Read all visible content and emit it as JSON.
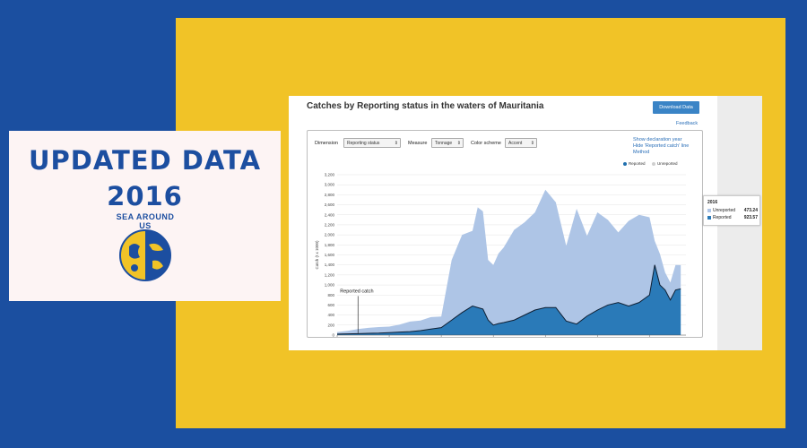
{
  "promo": {
    "line1": "UPDATED DATA",
    "line2": "2016",
    "logo_text": "SEA AROUND US",
    "colors": {
      "blue": "#1c4ea0",
      "yellow": "#f1c327"
    }
  },
  "app": {
    "title": "Catches by Reporting status in the waters of Mauritania",
    "download_label": "Download Data",
    "feedback_label": "Feedback",
    "controls": {
      "dimension_label": "Dimension",
      "dimension_value": "Reporting status",
      "measure_label": "Measure",
      "measure_value": "Tonnage",
      "color_label": "Color scheme",
      "color_value": "Accent"
    },
    "options": [
      "Show declaration year",
      "Hide 'Reported catch' line",
      "Method"
    ],
    "legend": [
      "Reported",
      "Unreported"
    ],
    "tooltip": {
      "year": "2016",
      "rows": [
        {
          "name": "Unreported",
          "value": "473.24"
        },
        {
          "name": "Reported",
          "value": "923.57"
        }
      ]
    }
  },
  "chart_data": {
    "type": "area",
    "ylabel": "Catch (t x 1000)",
    "xlabel": "",
    "ylim": [
      0,
      3200
    ],
    "yticks": [
      "0",
      "200",
      "400",
      "600",
      "800",
      "1,000",
      "1,200",
      "1,400",
      "1,600",
      "1,800",
      "2,000",
      "2,200",
      "2,400",
      "2,600",
      "2,800",
      "3,000",
      "3,200"
    ],
    "xticks": [
      "1950",
      "1960",
      "1970",
      "1980",
      "1990",
      "2000",
      "2010"
    ],
    "annotation": "Reported catch",
    "annotation_year": 1954,
    "colors": {
      "Reported": "#2a7ab8",
      "Unreported": "#aec5e6",
      "line": "#0f1f33"
    },
    "x": [
      1950,
      1952,
      1954,
      1956,
      1958,
      1960,
      1962,
      1964,
      1966,
      1968,
      1970,
      1972,
      1974,
      1976,
      1977,
      1978,
      1979,
      1980,
      1981,
      1982,
      1984,
      1986,
      1988,
      1990,
      1992,
      1994,
      1996,
      1998,
      2000,
      2002,
      2004,
      2006,
      2008,
      2010,
      2011,
      2012,
      2013,
      2014,
      2015,
      2016
    ],
    "series": [
      {
        "name": "Reported",
        "values": [
          20,
          25,
          30,
          35,
          40,
          50,
          60,
          70,
          90,
          120,
          150,
          300,
          450,
          580,
          550,
          520,
          300,
          200,
          230,
          250,
          300,
          400,
          500,
          550,
          550,
          280,
          220,
          380,
          500,
          600,
          650,
          580,
          650,
          800,
          1400,
          1000,
          900,
          700,
          900,
          924
        ]
      },
      {
        "name": "Unreported",
        "values": [
          40,
          60,
          90,
          110,
          120,
          120,
          150,
          200,
          200,
          240,
          220,
          1200,
          1550,
          1500,
          2000,
          1950,
          1200,
          1200,
          1400,
          1500,
          1800,
          1850,
          1950,
          2350,
          2100,
          1500,
          2300,
          1600,
          1950,
          1700,
          1400,
          1700,
          1750,
          1550,
          480,
          620,
          350,
          350,
          500,
          473
        ]
      }
    ]
  }
}
